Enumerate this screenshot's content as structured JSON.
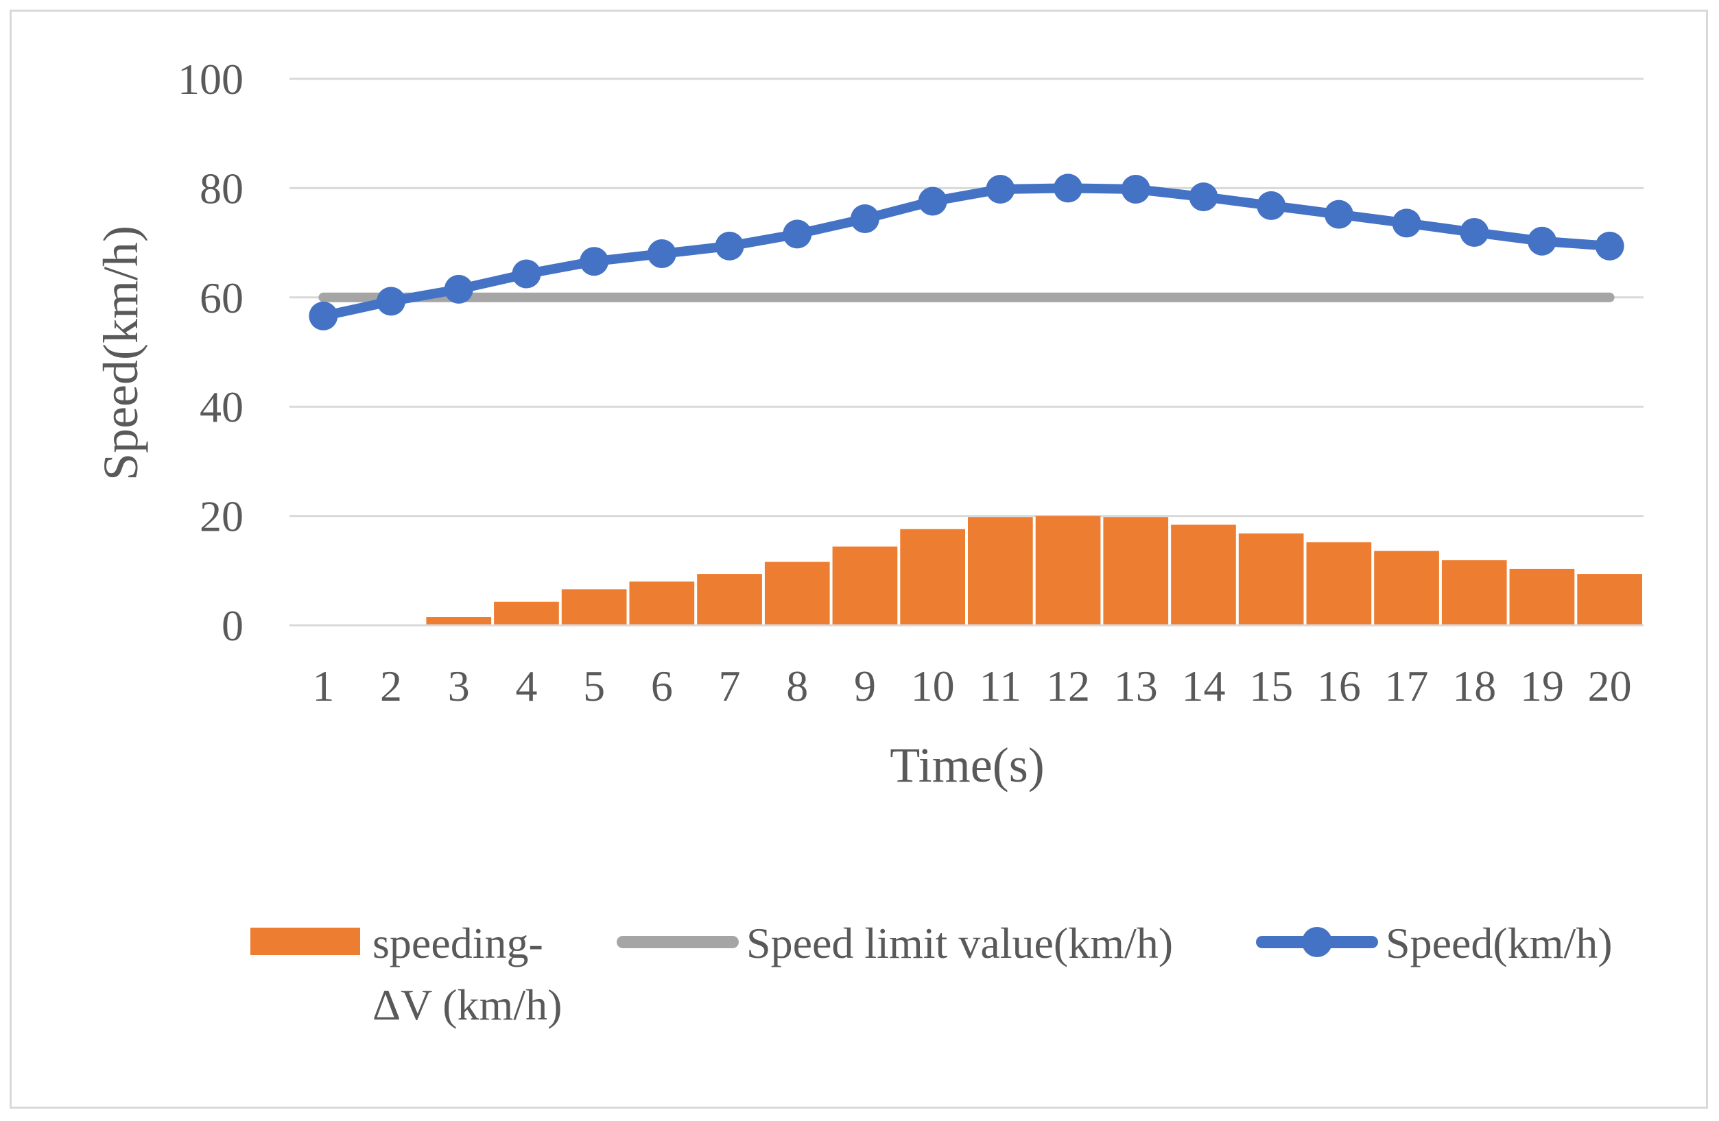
{
  "chart_data": {
    "type": "bar+line",
    "title": "",
    "xlabel": "Time(s)",
    "ylabel": "Speed(km/h)",
    "ylim": [
      0,
      100
    ],
    "yticks": [
      0,
      20,
      40,
      60,
      80,
      100
    ],
    "grid": true,
    "categories": [
      "1",
      "2",
      "3",
      "4",
      "5",
      "6",
      "7",
      "8",
      "9",
      "10",
      "11",
      "12",
      "13",
      "14",
      "15",
      "16",
      "17",
      "18",
      "19",
      "20"
    ],
    "series": [
      {
        "name": "speeding-ΔV (km/h)",
        "type": "bar",
        "color": "#ed7d31",
        "values": [
          0,
          0,
          1.5,
          4.3,
          6.6,
          8.0,
          9.4,
          11.6,
          14.4,
          17.6,
          19.8,
          20.0,
          19.8,
          18.4,
          16.8,
          15.2,
          13.6,
          11.9,
          10.3,
          9.4
        ]
      },
      {
        "name": "Speed limit value(km/h)",
        "type": "line",
        "color": "#a5a5a5",
        "values": [
          60,
          60,
          60,
          60,
          60,
          60,
          60,
          60,
          60,
          60,
          60,
          60,
          60,
          60,
          60,
          60,
          60,
          60,
          60,
          60
        ]
      },
      {
        "name": "Speed(km/h)",
        "type": "line-markers",
        "color": "#4472c4",
        "values": [
          56.6,
          59.3,
          61.5,
          64.3,
          66.6,
          68.0,
          69.4,
          71.6,
          74.4,
          77.6,
          79.8,
          80.0,
          79.8,
          78.4,
          76.8,
          75.2,
          73.6,
          71.9,
          70.3,
          69.4
        ]
      }
    ],
    "legend": {
      "position": "bottom",
      "items": [
        {
          "line1": "speeding-",
          "line2": "ΔV (km/h)"
        },
        {
          "line1": "Speed limit value(km/h)"
        },
        {
          "line1": "Speed(km/h)"
        }
      ]
    }
  }
}
